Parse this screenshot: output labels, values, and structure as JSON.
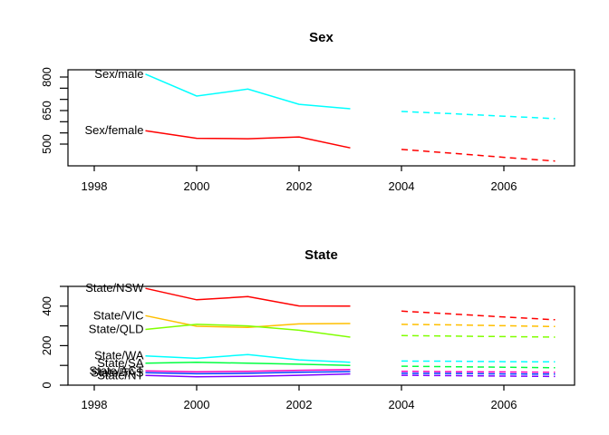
{
  "figure": {
    "background": "#ffffff",
    "text_color": "#000000"
  },
  "chart_data": [
    {
      "type": "line",
      "title": "Sex",
      "x_solid": [
        1999,
        2000,
        2001,
        2002,
        2003
      ],
      "x_forecast": [
        2004,
        2005,
        2006,
        2007
      ],
      "x_ticks": [
        1998,
        2000,
        2002,
        2004,
        2006
      ],
      "x_tick_labels": [
        "1998",
        "2000",
        "2002",
        "2004",
        "2006"
      ],
      "xlim": [
        1997.5,
        2007.5
      ],
      "y_ticks": [
        500,
        550,
        600,
        650,
        700,
        750,
        800
      ],
      "y_tick_labels": [
        "500",
        "",
        "",
        "650",
        "",
        "",
        "800"
      ],
      "ylim": [
        403,
        832
      ],
      "grid": false,
      "legend": "inline-labels-at-series-start",
      "forecast_style": "dashed",
      "series": [
        {
          "name": "Sex/male",
          "color": "#00FFFF",
          "values": [
            813,
            715,
            746,
            678,
            658
          ],
          "forecast": [
            646,
            636,
            625,
            614
          ]
        },
        {
          "name": "Sex/female",
          "color": "#FF0000",
          "values": [
            560,
            526,
            524,
            532,
            483
          ],
          "forecast": [
            476,
            459,
            441,
            424
          ]
        }
      ]
    },
    {
      "type": "line",
      "title": "State",
      "x_solid": [
        1999,
        2000,
        2001,
        2002,
        2003
      ],
      "x_forecast": [
        2004,
        2005,
        2006,
        2007
      ],
      "x_ticks": [
        1998,
        2000,
        2002,
        2004,
        2006
      ],
      "x_tick_labels": [
        "1998",
        "2000",
        "2002",
        "2004",
        "2006"
      ],
      "xlim": [
        1997.5,
        2007.5
      ],
      "y_ticks": [
        0,
        100,
        200,
        300,
        400,
        500
      ],
      "y_tick_labels": [
        "0",
        "",
        "200",
        "",
        "400",
        ""
      ],
      "ylim": [
        0,
        500
      ],
      "grid": false,
      "legend": "inline-labels-at-series-start",
      "forecast_style": "dashed",
      "series": [
        {
          "name": "State/NSW",
          "color": "#FF0000",
          "values": [
            490,
            432,
            448,
            401,
            400
          ],
          "forecast": [
            375,
            360,
            345,
            331
          ]
        },
        {
          "name": "State/VIC",
          "color": "#FFBF00",
          "values": [
            352,
            298,
            292,
            310,
            312
          ],
          "forecast": [
            308,
            305,
            301,
            297
          ]
        },
        {
          "name": "State/QLD",
          "color": "#80FF00",
          "values": [
            282,
            308,
            300,
            278,
            243
          ],
          "forecast": [
            251,
            248,
            246,
            243
          ]
        },
        {
          "name": "State/SA",
          "color": "#00FF40",
          "values": [
            111,
            116,
            111,
            106,
            100
          ],
          "forecast": [
            96,
            93,
            91,
            88
          ]
        },
        {
          "name": "State/WA",
          "color": "#00FFFF",
          "values": [
            148,
            136,
            155,
            128,
            116
          ],
          "forecast": [
            122,
            121,
            119,
            118
          ]
        },
        {
          "name": "State/TAS",
          "color": "#0040FF",
          "values": [
            63,
            58,
            60,
            65,
            69
          ],
          "forecast": [
            60,
            59,
            57,
            56
          ]
        },
        {
          "name": "State/NT",
          "color": "#8000FF",
          "values": [
            49,
            42,
            45,
            50,
            57
          ],
          "forecast": [
            50,
            48,
            46,
            44
          ]
        },
        {
          "name": "State/ACT",
          "color": "#FF00BF",
          "values": [
            72,
            68,
            70,
            75,
            79
          ],
          "forecast": [
            70,
            68,
            67,
            65
          ]
        }
      ]
    }
  ]
}
